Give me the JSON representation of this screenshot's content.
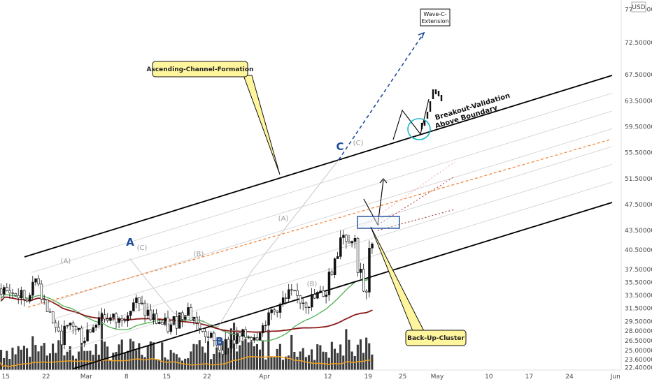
{
  "chart_data": {
    "type": "candlestick",
    "currency_label": "USD",
    "ylim": [
      22.0,
      78.5
    ],
    "xlim": [
      "2021-02-14",
      "2021-06-02"
    ],
    "y_ticks": [
      "77.60000",
      "72.50000",
      "67.50000",
      "63.50000",
      "59.50000",
      "55.50000",
      "51.50000",
      "47.50000",
      "43.50000",
      "40.50000",
      "37.50000",
      "35.50000",
      "33.50000",
      "31.50000",
      "29.50000",
      "28.00000",
      "26.50000",
      "25.00000",
      "23.60000",
      "22.40000"
    ],
    "x_ticks": [
      {
        "date": "2021-02-15",
        "label": "15"
      },
      {
        "date": "2021-02-22",
        "label": "22"
      },
      {
        "date": "2021-03-01",
        "label": "Mar"
      },
      {
        "date": "2021-03-08",
        "label": "8"
      },
      {
        "date": "2021-03-15",
        "label": "15"
      },
      {
        "date": "2021-03-22",
        "label": "22"
      },
      {
        "date": "2021-04-01",
        "label": "Apr"
      },
      {
        "date": "2021-04-12",
        "label": "12"
      },
      {
        "date": "2021-04-19",
        "label": "19"
      },
      {
        "date": "2021-04-25",
        "label": "25"
      },
      {
        "date": "2021-05-01",
        "label": "May"
      },
      {
        "date": "2021-05-10",
        "label": "10"
      },
      {
        "date": "2021-05-17",
        "label": "17"
      },
      {
        "date": "2021-05-24",
        "label": "24"
      },
      {
        "date": "2021-06-01",
        "label": "Jun"
      }
    ],
    "price_path": [
      {
        "date": "2021-02-14",
        "close": 34.5
      },
      {
        "date": "2021-02-18",
        "close": 33.0
      },
      {
        "date": "2021-02-20",
        "close": 36.0
      },
      {
        "date": "2021-02-22",
        "close": 31.0
      },
      {
        "date": "2021-02-24",
        "close": 27.0
      },
      {
        "date": "2021-02-26",
        "close": 29.0
      },
      {
        "date": "2021-02-28",
        "close": 27.0
      },
      {
        "date": "2021-03-03",
        "close": 30.5
      },
      {
        "date": "2021-03-06",
        "close": 29.5
      },
      {
        "date": "2021-03-09",
        "close": 32.5
      },
      {
        "date": "2021-03-12",
        "close": 30.0
      },
      {
        "date": "2021-03-15",
        "close": 28.5
      },
      {
        "date": "2021-03-18",
        "close": 31.5
      },
      {
        "date": "2021-03-21",
        "close": 27.5
      },
      {
        "date": "2021-03-24",
        "close": 25.5
      },
      {
        "date": "2021-03-27",
        "close": 27.0
      },
      {
        "date": "2021-03-30",
        "close": 27.5
      },
      {
        "date": "2021-04-02",
        "close": 31.0
      },
      {
        "date": "2021-04-05",
        "close": 33.5
      },
      {
        "date": "2021-04-08",
        "close": 32.5
      },
      {
        "date": "2021-04-11",
        "close": 34.0
      },
      {
        "date": "2021-04-14",
        "close": 43.0
      },
      {
        "date": "2021-04-16",
        "close": 42.0
      },
      {
        "date": "2021-04-18",
        "close": 33.5
      },
      {
        "date": "2021-04-19",
        "close": 40.5
      }
    ],
    "wave_labels_major": [
      "A",
      "B",
      "C"
    ],
    "wave_labels_minor": [
      "(A)",
      "(C)",
      "(B)",
      "(A)",
      "(C)",
      "(A)",
      "(B)",
      "(C)"
    ],
    "annotations": {
      "channel": "Ascending-Channel-Formation",
      "extension": "Wave-C-\nExtension",
      "breakout": "Breakout-Validation\nAbove Boundary",
      "backup": "Back-Up-Cluster"
    },
    "colors": {
      "ma_fast": "#4caf50",
      "ma_slow": "#8b1a1a",
      "volume_ma": "#f0a020",
      "projection": "#1f4e9a",
      "callout_fill": "#fff59d",
      "candle_up": "#111111",
      "candle_down": "#ffffff",
      "circle": "#1fb8c8",
      "box": "#1f4e9a"
    }
  }
}
